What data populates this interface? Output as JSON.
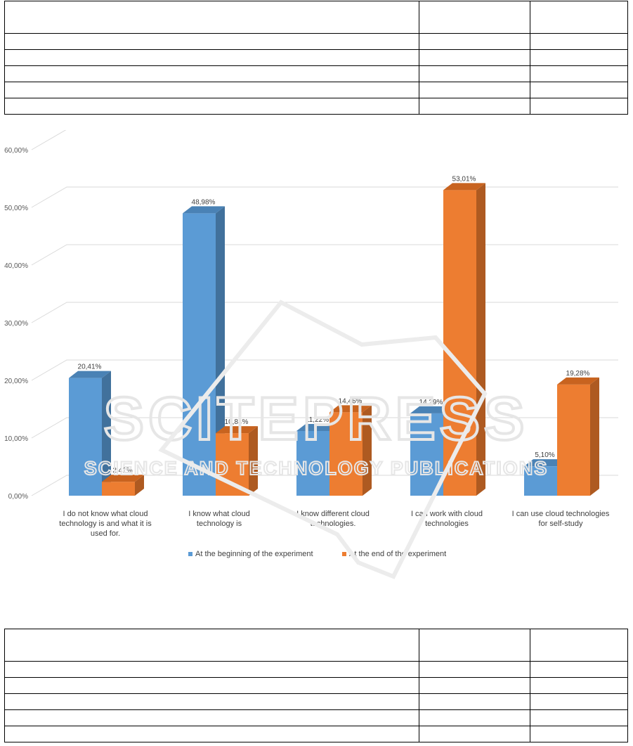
{
  "chart_data": {
    "type": "bar",
    "categories": [
      [
        "I do not know what cloud",
        "technology is and what it is",
        "used for."
      ],
      [
        "I know what cloud",
        "technology is"
      ],
      [
        "I know different cloud",
        "technologies."
      ],
      [
        "I can work with cloud",
        "technologies"
      ],
      [
        "I can use cloud technologies",
        "for self-study"
      ]
    ],
    "series": [
      {
        "name": "At the beginning of the experiment",
        "values": [
          20.41,
          48.98,
          11.22,
          14.29,
          5.1
        ],
        "labels": [
          "20,41%",
          "48,98%",
          "11,22%",
          "14,29%",
          "5,10%"
        ],
        "color": "#5b9bd5",
        "side_color": "#41719c",
        "top_color": "#4a82b5"
      },
      {
        "name": "At the end of the experiment",
        "values": [
          2.41,
          10.84,
          14.46,
          53.01,
          19.28
        ],
        "labels": [
          "2,41%",
          "10,84%",
          "14,46%",
          "53,01%",
          "19,28%"
        ],
        "color": "#ed7d31",
        "side_color": "#ae5a21",
        "top_color": "#c8631f"
      }
    ],
    "y_ticks": [
      "0,00%",
      "10,00%",
      "20,00%",
      "30,00%",
      "40,00%",
      "50,00%",
      "60,00%"
    ],
    "ylim": [
      0,
      60
    ],
    "grid": true,
    "legend": "bottom",
    "gridline_color": "#d9d9d9"
  },
  "watermark": {
    "main": "SCITEPRESS",
    "sub": "SCIENCE AND TECHNOLOGY PUBLICATIONS"
  }
}
